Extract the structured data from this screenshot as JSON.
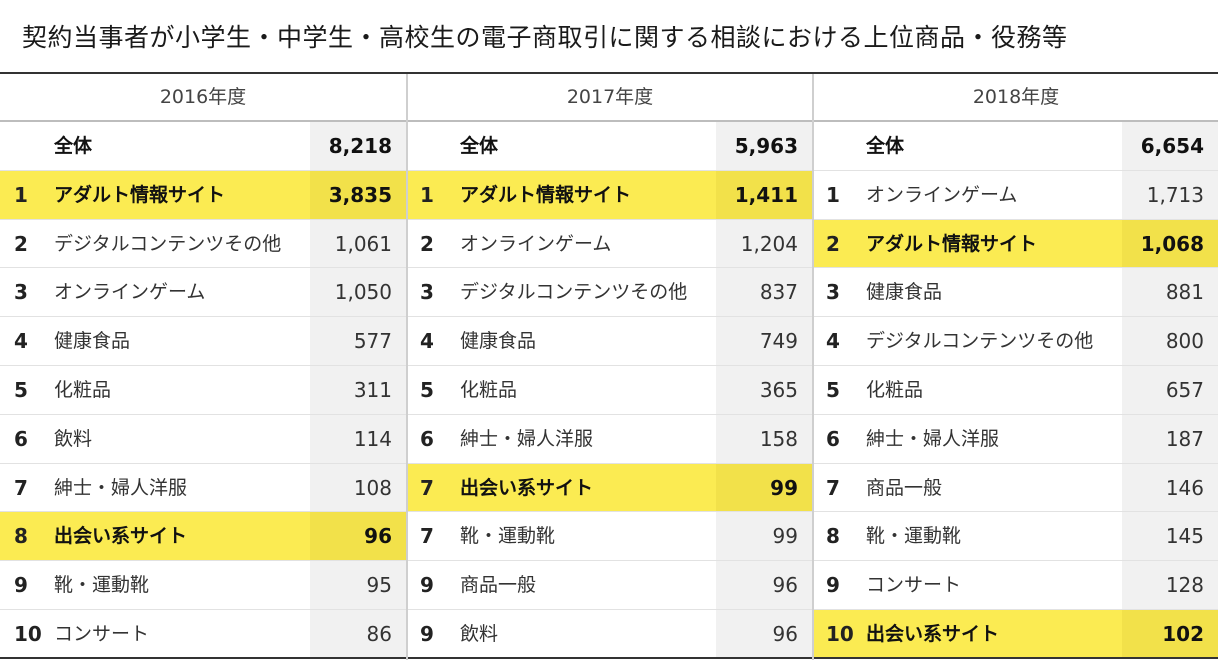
{
  "title": "契約当事者が小学生・中学生・高校生の電子商取引に関する相談における上位商品・役務等",
  "years": [
    {
      "label": "2016年度",
      "total_label": "全体",
      "total_value": "8,218",
      "rows": [
        {
          "rank": "1",
          "name": "アダルト情報サイト",
          "value": "3,835",
          "highlight": true
        },
        {
          "rank": "2",
          "name": "デジタルコンテンツその他",
          "value": "1,061",
          "highlight": false
        },
        {
          "rank": "3",
          "name": "オンラインゲーム",
          "value": "1,050",
          "highlight": false
        },
        {
          "rank": "4",
          "name": "健康食品",
          "value": "577",
          "highlight": false
        },
        {
          "rank": "5",
          "name": "化粧品",
          "value": "311",
          "highlight": false
        },
        {
          "rank": "6",
          "name": "飲料",
          "value": "114",
          "highlight": false
        },
        {
          "rank": "7",
          "name": "紳士・婦人洋服",
          "value": "108",
          "highlight": false
        },
        {
          "rank": "8",
          "name": "出会い系サイト",
          "value": "96",
          "highlight": true
        },
        {
          "rank": "9",
          "name": "靴・運動靴",
          "value": "95",
          "highlight": false
        },
        {
          "rank": "10",
          "name": "コンサート",
          "value": "86",
          "highlight": false
        }
      ]
    },
    {
      "label": "2017年度",
      "total_label": "全体",
      "total_value": "5,963",
      "rows": [
        {
          "rank": "1",
          "name": "アダルト情報サイト",
          "value": "1,411",
          "highlight": true
        },
        {
          "rank": "2",
          "name": "オンラインゲーム",
          "value": "1,204",
          "highlight": false
        },
        {
          "rank": "3",
          "name": "デジタルコンテンツその他",
          "value": "837",
          "highlight": false
        },
        {
          "rank": "4",
          "name": "健康食品",
          "value": "749",
          "highlight": false
        },
        {
          "rank": "5",
          "name": "化粧品",
          "value": "365",
          "highlight": false
        },
        {
          "rank": "6",
          "name": "紳士・婦人洋服",
          "value": "158",
          "highlight": false
        },
        {
          "rank": "7",
          "name": "出会い系サイト",
          "value": "99",
          "highlight": true
        },
        {
          "rank": "7",
          "name": "靴・運動靴",
          "value": "99",
          "highlight": false
        },
        {
          "rank": "9",
          "name": "商品一般",
          "value": "96",
          "highlight": false
        },
        {
          "rank": "9",
          "name": "飲料",
          "value": "96",
          "highlight": false
        }
      ]
    },
    {
      "label": "2018年度",
      "total_label": "全体",
      "total_value": "6,654",
      "rows": [
        {
          "rank": "1",
          "name": "オンラインゲーム",
          "value": "1,713",
          "highlight": false
        },
        {
          "rank": "2",
          "name": "アダルト情報サイト",
          "value": "1,068",
          "highlight": true
        },
        {
          "rank": "3",
          "name": "健康食品",
          "value": "881",
          "highlight": false
        },
        {
          "rank": "4",
          "name": "デジタルコンテンツその他",
          "value": "800",
          "highlight": false
        },
        {
          "rank": "5",
          "name": "化粧品",
          "value": "657",
          "highlight": false
        },
        {
          "rank": "6",
          "name": "紳士・婦人洋服",
          "value": "187",
          "highlight": false
        },
        {
          "rank": "7",
          "name": "商品一般",
          "value": "146",
          "highlight": false
        },
        {
          "rank": "8",
          "name": "靴・運動靴",
          "value": "145",
          "highlight": false
        },
        {
          "rank": "9",
          "name": "コンサート",
          "value": "128",
          "highlight": false
        },
        {
          "rank": "10",
          "name": "出会い系サイト",
          "value": "102",
          "highlight": true
        }
      ]
    }
  ],
  "colors": {
    "highlight": "#fbeb52",
    "highlight_value": "#f2e14a",
    "value_cell": "#f1f1f1",
    "rule": "#333333"
  }
}
